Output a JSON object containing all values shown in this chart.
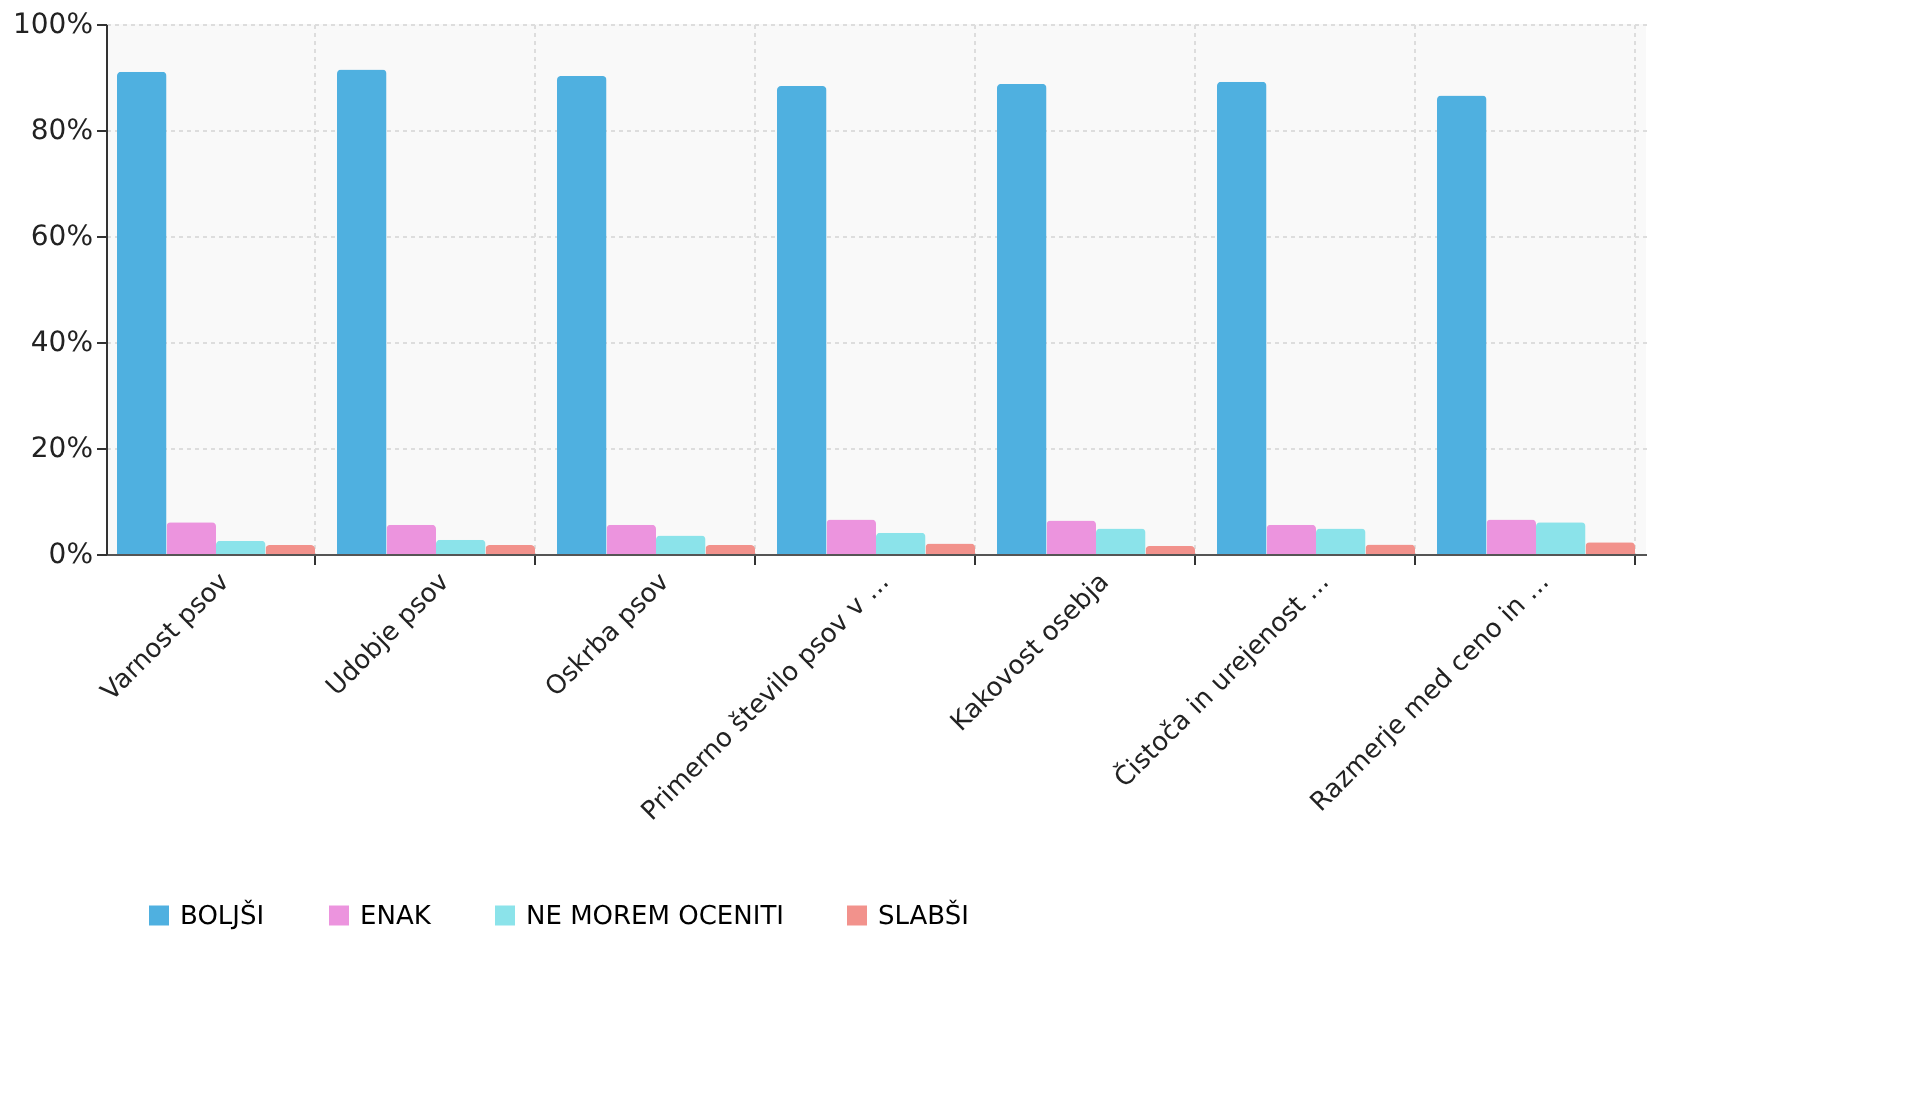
{
  "chart_data": {
    "type": "bar",
    "categories": [
      "Varnost psov",
      "Udobje psov",
      "Oskrba psov",
      "Primerno število psov v ...",
      "Kakovost osebja",
      "Čistoča in urejenost ...",
      "Razmerje med ceno in ..."
    ],
    "series": [
      {
        "name": "BOLJŠI",
        "color": "#4fb0e0",
        "values": [
          91,
          91.4,
          90.2,
          88.3,
          88.7,
          89.1,
          86.5
        ]
      },
      {
        "name": "ENAK",
        "color": "#ec94de",
        "values": [
          6,
          5.5,
          5.5,
          6.5,
          6.3,
          5.5,
          6.5
        ]
      },
      {
        "name": "NE MOREM OCENITI",
        "color": "#8be3ea",
        "values": [
          2.5,
          2.7,
          3.5,
          4,
          4.8,
          4.8,
          6
        ]
      },
      {
        "name": "SLABŠI",
        "color": "#f2928c",
        "values": [
          1.7,
          1.7,
          1.7,
          2,
          1.5,
          1.8,
          2.2
        ]
      }
    ],
    "ylim": [
      0,
      100
    ],
    "yticks": [
      {
        "value": 0,
        "label": "0%"
      },
      {
        "value": 20,
        "label": "20%"
      },
      {
        "value": 40,
        "label": "40%"
      },
      {
        "value": 60,
        "label": "60%"
      },
      {
        "value": 80,
        "label": "80%"
      },
      {
        "value": 100,
        "label": "100%"
      }
    ],
    "grid": true,
    "legend": "bottom"
  }
}
